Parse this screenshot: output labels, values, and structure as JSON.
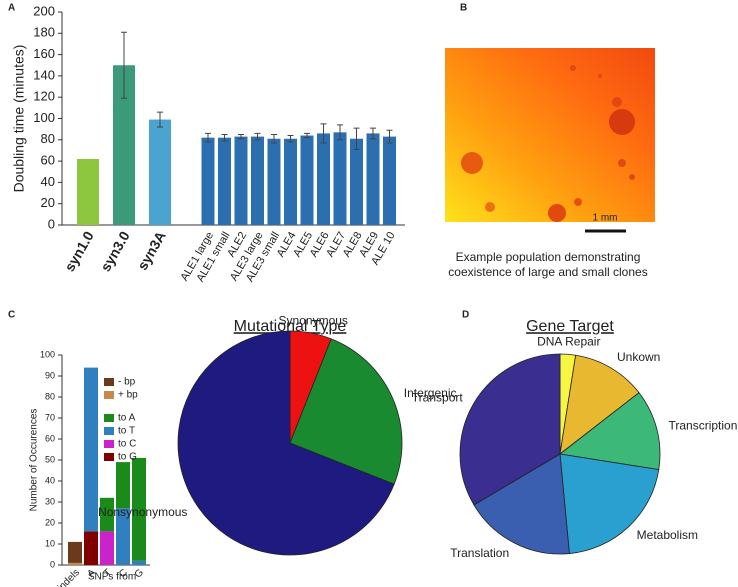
{
  "chart_data": [
    {
      "type": "bar",
      "panel_label": "A",
      "y_label": "Doubling time (minutes)",
      "categories": [
        "syn1.0",
        "syn3.0",
        "syn3A",
        "ALE1 large",
        "ALE1 small",
        "ALE2",
        "ALE3 large",
        "ALE3 small",
        "ALE4",
        "ALE5",
        "ALE6",
        "ALE7",
        "ALE8",
        "ALE9",
        "ALE 10"
      ],
      "values": [
        62,
        150,
        99,
        82,
        82,
        83,
        83,
        81,
        81,
        84,
        86,
        87,
        81,
        86,
        83
      ],
      "errors": [
        null,
        31,
        7,
        4,
        3,
        2,
        3,
        4,
        3,
        2,
        9,
        7,
        10,
        5,
        6
      ],
      "colors": [
        "#8dc63f",
        "#3a9a7a",
        "#4aa3d0",
        "#2b6fb0",
        "#2b6fb0",
        "#2b6fb0",
        "#2b6fb0",
        "#2b6fb0",
        "#2b6fb0",
        "#2b6fb0",
        "#2b6fb0",
        "#2b6fb0",
        "#2b6fb0",
        "#2b6fb0",
        "#2b6fb0"
      ],
      "ylim": [
        0,
        200
      ],
      "yticks": [
        0,
        20,
        40,
        60,
        80,
        100,
        120,
        140,
        160,
        180,
        200
      ]
    },
    {
      "type": "stacked_bar",
      "panel_label": "C",
      "y_label": "Number of Occurences",
      "x_label": "SNPs from",
      "categories": [
        "indels",
        "A",
        "T",
        "C",
        "G"
      ],
      "series": [
        {
          "name": "- bp",
          "color": "#6b3a1a",
          "values": [
            10,
            null,
            null,
            null,
            null
          ]
        },
        {
          "name": "+ bp",
          "color": "#c8884a",
          "values": [
            1,
            null,
            null,
            null,
            null
          ]
        },
        {
          "name": "to A",
          "color": "#1a8a1a",
          "values": [
            null,
            null,
            16,
            22,
            49
          ]
        },
        {
          "name": "to T",
          "color": "#3080c0",
          "values": [
            null,
            78,
            null,
            27,
            2
          ]
        },
        {
          "name": "to C",
          "color": "#cc22cc",
          "values": [
            null,
            null,
            16,
            null,
            null
          ]
        },
        {
          "name": "to G",
          "color": "#800000",
          "values": [
            null,
            16,
            null,
            null,
            null
          ]
        }
      ],
      "ylim": [
        0,
        100
      ],
      "yticks": [
        0,
        10,
        20,
        30,
        40,
        50,
        60,
        70,
        80,
        90,
        100
      ]
    },
    {
      "type": "pie",
      "title": "Mutational Type",
      "categories": [
        "Synonymous",
        "Intergenic",
        "Nonsynonymous"
      ],
      "values": [
        6,
        25,
        69
      ],
      "colors": [
        "#ee1111",
        "#1a8a30",
        "#1f1a80"
      ]
    },
    {
      "type": "pie",
      "panel_label": "D",
      "title": "Gene Target",
      "categories": [
        "DNA Repair",
        "Unkown",
        "Transcription",
        "Metabolism",
        "Translation",
        "Transport"
      ],
      "values": [
        2.5,
        12,
        13,
        21,
        18,
        33.5
      ],
      "colors": [
        "#f5f542",
        "#e8b830",
        "#3cb878",
        "#2aa0d0",
        "#3a5fb0",
        "#3a2f90"
      ]
    }
  ],
  "panel_b": {
    "label": "B",
    "caption": [
      "Example population demonstrating",
      "coexistence of large and small clones"
    ],
    "scale_bar": "1 mm"
  }
}
